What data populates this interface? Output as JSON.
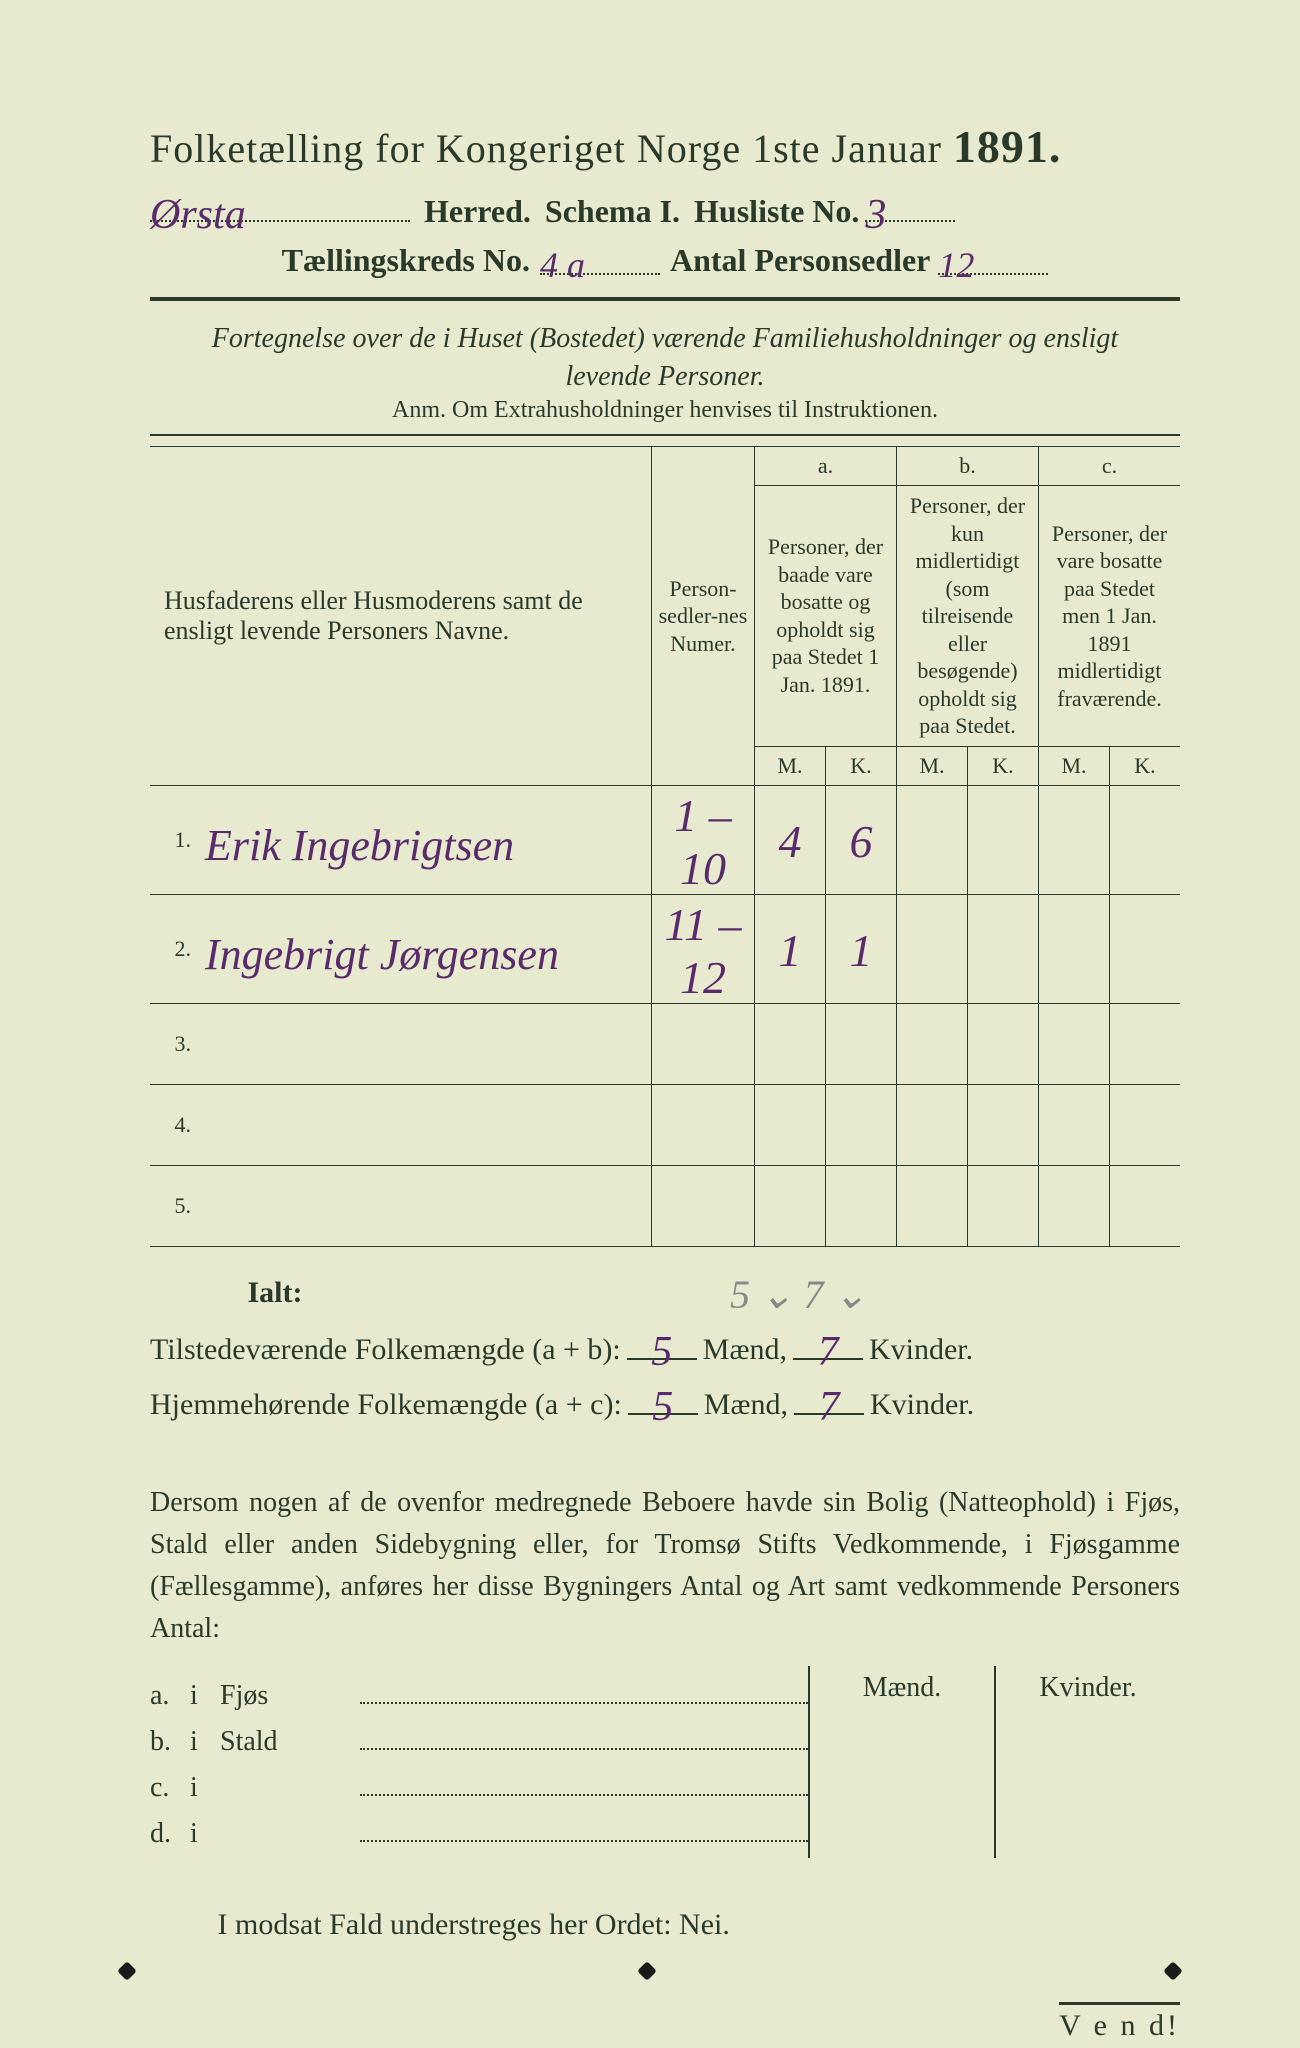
{
  "colors": {
    "paper": "#e8ead0",
    "ink": "#2a3a2a",
    "handwriting": "#5a2b6b"
  },
  "header": {
    "title_prefix": "Folketælling for Kongeriget Norge 1ste Januar ",
    "year": "1891.",
    "herred_hand": "Ørsta",
    "herred_label": " Herred.",
    "schema_label": "Schema I.",
    "husliste_label": "Husliste No.",
    "husliste_hand": "3",
    "kreds_label": "Tællingskreds No.",
    "kreds_hand": "4 a",
    "antal_label": "Antal Personsedler",
    "antal_hand": "12"
  },
  "intro": {
    "line1": "Fortegnelse over de i Huset (Bostedet) værende Familiehusholdninger og ensligt",
    "line2": "levende Personer.",
    "anm": "Anm.  Om Extrahusholdninger henvises til Instruktionen."
  },
  "table": {
    "col_names": "Husfaderens eller Husmoderens samt de ensligt levende Personers Navne.",
    "col_nums": "Person-sedler-nes Numer.",
    "colA_tag": "a.",
    "colA": "Personer, der baade vare bosatte og opholdt sig paa Stedet 1 Jan. 1891.",
    "colB_tag": "b.",
    "colB": "Personer, der kun midlertidigt (som tilreisende eller besøgende) opholdt sig paa Stedet.",
    "colC_tag": "c.",
    "colC": "Personer, der vare bosatte paa Stedet men 1 Jan. 1891 midlertidigt fraværende.",
    "M": "M.",
    "K": "K.",
    "rows": [
      {
        "idx": "1.",
        "name": "Erik Ingebrigtsen",
        "num": "1 – 10",
        "aM": "4",
        "aK": "6",
        "bM": "",
        "bK": "",
        "cM": "",
        "cK": ""
      },
      {
        "idx": "2.",
        "name": "Ingebrigt Jørgensen",
        "num": "11 – 12",
        "aM": "1",
        "aK": "1",
        "bM": "",
        "bK": "",
        "cM": "",
        "cK": ""
      },
      {
        "idx": "3.",
        "name": "",
        "num": "",
        "aM": "",
        "aK": "",
        "bM": "",
        "bK": "",
        "cM": "",
        "cK": ""
      },
      {
        "idx": "4.",
        "name": "",
        "num": "",
        "aM": "",
        "aK": "",
        "bM": "",
        "bK": "",
        "cM": "",
        "cK": ""
      },
      {
        "idx": "5.",
        "name": "",
        "num": "",
        "aM": "",
        "aK": "",
        "bM": "",
        "bK": "",
        "cM": "",
        "cK": ""
      }
    ]
  },
  "ialt": {
    "label": "Ialt:",
    "note": "5  ⌄  7 ⌄"
  },
  "totals": {
    "line1_label": "Tilstedeværende Folkemængde (a + b):",
    "line1_m": "5",
    "line1_k": "7",
    "line2_label": "Hjemmehørende Folkemængde (a + c):",
    "line2_m": "5",
    "line2_k": "7",
    "maend": "Mænd,",
    "kvinder": "Kvinder."
  },
  "para": "Dersom nogen af de ovenfor medregnede Beboere havde sin Bolig (Natteophold) i Fjøs, Stald eller anden Sidebygning eller, for Tromsø Stifts Vedkommende, i Fjøsgamme (Fællesgamme), anføres her disse Bygningers Antal og Art samt vedkommende Personers Antal:",
  "mk": {
    "maend": "Mænd.",
    "kvinder": "Kvinder.",
    "rows": [
      {
        "idx": "a.",
        "i": "i",
        "lbl": "Fjøs"
      },
      {
        "idx": "b.",
        "i": "i",
        "lbl": "Stald"
      },
      {
        "idx": "c.",
        "i": "i",
        "lbl": ""
      },
      {
        "idx": "d.",
        "i": "i",
        "lbl": ""
      }
    ]
  },
  "bottom": "I modsat Fald understreges her Ordet: Nei.",
  "vend": "V e n d!"
}
